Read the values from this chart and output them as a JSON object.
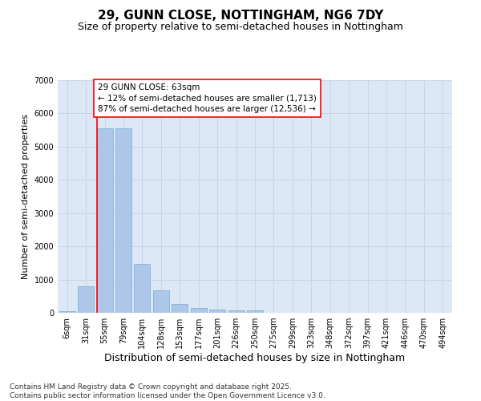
{
  "title": "29, GUNN CLOSE, NOTTINGHAM, NG6 7DY",
  "subtitle": "Size of property relative to semi-detached houses in Nottingham",
  "xlabel": "Distribution of semi-detached houses by size in Nottingham",
  "ylabel": "Number of semi-detached properties",
  "categories": [
    "6sqm",
    "31sqm",
    "55sqm",
    "79sqm",
    "104sqm",
    "128sqm",
    "153sqm",
    "177sqm",
    "201sqm",
    "226sqm",
    "250sqm",
    "275sqm",
    "299sqm",
    "323sqm",
    "348sqm",
    "372sqm",
    "397sqm",
    "421sqm",
    "446sqm",
    "470sqm",
    "494sqm"
  ],
  "values": [
    60,
    800,
    5550,
    5550,
    1480,
    670,
    270,
    145,
    95,
    70,
    70,
    0,
    0,
    0,
    0,
    0,
    0,
    0,
    0,
    0,
    0
  ],
  "bar_color": "#aec6e8",
  "bar_edge_color": "#6baed6",
  "grid_color": "#c8d4e8",
  "background_color": "#dce8f5",
  "vline_color": "red",
  "vline_x": 1.575,
  "annotation_text": "29 GUNN CLOSE: 63sqm\n← 12% of semi-detached houses are smaller (1,713)\n87% of semi-detached houses are larger (12,536) →",
  "annotation_box_color": "white",
  "annotation_box_edge_color": "red",
  "ylim": [
    0,
    7000
  ],
  "yticks": [
    0,
    1000,
    2000,
    3000,
    4000,
    5000,
    6000,
    7000
  ],
  "footer_text": "Contains HM Land Registry data © Crown copyright and database right 2025.\nContains public sector information licensed under the Open Government Licence v3.0.",
  "title_fontsize": 11,
  "subtitle_fontsize": 9,
  "xlabel_fontsize": 9,
  "ylabel_fontsize": 8,
  "tick_fontsize": 7,
  "annotation_fontsize": 7.5,
  "footer_fontsize": 6.5
}
